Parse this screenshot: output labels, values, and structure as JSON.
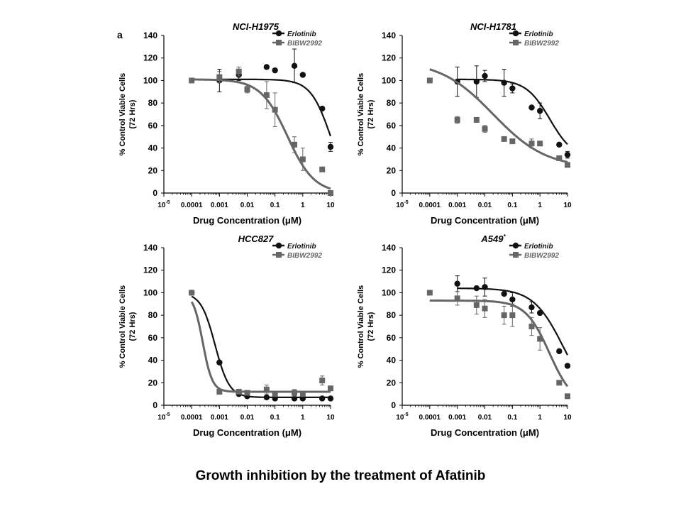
{
  "figure": {
    "panel_letter": "a",
    "caption": "Growth inhibition by the treatment of Afatinib",
    "colors": {
      "erlotinib": "#111111",
      "bibw2992": "#666666",
      "axis": "#000000"
    }
  },
  "chart_data": [
    {
      "type": "scatter",
      "title": "NCI-H1975",
      "xlabel": "Drug Concentration (μM)",
      "ylabel": "% Control Viable Cells",
      "ylabel2": "(72 Hrs)",
      "xscale": "log",
      "xlim": [
        1e-05,
        10
      ],
      "ylim": [
        0,
        140
      ],
      "xticks": [
        "10-5",
        "0.0001",
        "0.001",
        "0.01",
        "0.1",
        "1",
        "10"
      ],
      "yticks": [
        "0",
        "20",
        "40",
        "60",
        "80",
        "100",
        "120",
        "140"
      ],
      "legend": "top-right",
      "series": [
        {
          "name": "Erlotinib",
          "marker": "circle",
          "x": [
            0.001,
            0.005,
            0.05,
            0.1,
            0.5,
            1,
            5,
            10
          ],
          "y": [
            100,
            105,
            112,
            109,
            113,
            105,
            75,
            41
          ],
          "err": [
            10,
            5,
            0,
            0,
            15,
            0,
            0,
            4
          ],
          "fit": {
            "top": 101,
            "bottom": 0,
            "ic50": 10,
            "hill": 1.2
          }
        },
        {
          "name": "BIBW2992",
          "marker": "square",
          "x": [
            0.0001,
            0.001,
            0.005,
            0.01,
            0.05,
            0.1,
            0.5,
            1,
            5,
            10
          ],
          "y": [
            100,
            103,
            108,
            92,
            87,
            74,
            43,
            30,
            21,
            0
          ],
          "err": [
            0,
            5,
            4,
            3,
            12,
            15,
            7,
            10,
            0,
            0
          ],
          "fit": {
            "top": 101,
            "bottom": 0,
            "ic50": 0.28,
            "hill": 0.9
          }
        }
      ]
    },
    {
      "type": "scatter",
      "title": "NCI-H1781",
      "xlabel": "Drug Concentration (μM)",
      "ylabel": "% Control Viable Cells",
      "ylabel2": "(72 Hrs)",
      "xscale": "log",
      "xlim": [
        1e-05,
        10
      ],
      "ylim": [
        0,
        140
      ],
      "xticks": [
        "10-5",
        "0.0001",
        "0.001",
        "0.01",
        "0.1",
        "1",
        "10"
      ],
      "yticks": [
        "0",
        "20",
        "40",
        "60",
        "80",
        "100",
        "120",
        "140"
      ],
      "legend": "top-right",
      "series": [
        {
          "name": "Erlotinib",
          "marker": "circle",
          "x": [
            0.001,
            0.005,
            0.01,
            0.05,
            0.1,
            0.5,
            1,
            5,
            10
          ],
          "y": [
            99,
            99,
            104,
            98,
            93,
            76,
            73,
            43,
            34
          ],
          "err": [
            13,
            14,
            5,
            12,
            4,
            0,
            7,
            0,
            3
          ],
          "fit": {
            "top": 101,
            "bottom": 30,
            "ic50": 2.3,
            "hill": 1.0
          }
        },
        {
          "name": "BIBW2992",
          "marker": "square",
          "x": [
            0.0001,
            0.001,
            0.005,
            0.01,
            0.05,
            0.1,
            0.5,
            1,
            5,
            10
          ],
          "y": [
            100,
            65,
            65,
            57,
            48,
            46,
            44,
            44,
            31,
            25
          ],
          "err": [
            0,
            3,
            0,
            3,
            0,
            0,
            4,
            0,
            0,
            0
          ],
          "fit": {
            "top": 118,
            "bottom": 22,
            "ic50": 0.02,
            "hill": 0.45
          }
        }
      ]
    },
    {
      "type": "scatter",
      "title": "HCC827",
      "xlabel": "Drug Concentration (μM)",
      "ylabel": "% Control Viable Cells",
      "ylabel2": "(72 Hrs)",
      "xscale": "log",
      "xlim": [
        1e-05,
        10
      ],
      "ylim": [
        0,
        140
      ],
      "xticks": [
        "10-5",
        "0.0001",
        "0.001",
        "0.01",
        "0.1",
        "1",
        "10"
      ],
      "yticks": [
        "0",
        "20",
        "40",
        "60",
        "80",
        "100",
        "120",
        "140"
      ],
      "legend": "top-right",
      "series": [
        {
          "name": "Erlotinib",
          "marker": "circle",
          "x": [
            0.0001,
            0.001,
            0.005,
            0.01,
            0.05,
            0.1,
            0.5,
            1,
            5,
            10
          ],
          "y": [
            100,
            38,
            10,
            8,
            7,
            6,
            6,
            6,
            6,
            6
          ],
          "err": [
            0,
            0,
            0,
            0,
            0,
            0,
            0,
            0,
            0,
            0
          ],
          "fit": {
            "top": 100,
            "bottom": 7,
            "ic50": 0.0007,
            "hill": 1.7
          }
        },
        {
          "name": "BIBW2992",
          "marker": "square",
          "x": [
            0.0001,
            0.001,
            0.005,
            0.01,
            0.05,
            0.1,
            0.5,
            1,
            5,
            10
          ],
          "y": [
            100,
            12,
            12,
            11,
            14,
            10,
            11,
            10,
            22,
            15
          ],
          "err": [
            0,
            0,
            0,
            0,
            4,
            0,
            3,
            0,
            4,
            0
          ],
          "fit": {
            "top": 100,
            "bottom": 12,
            "ic50": 0.00025,
            "hill": 2.5
          }
        }
      ]
    },
    {
      "type": "scatter",
      "title": "A549",
      "title_suffix": "*",
      "xlabel": "Drug Concentration (μM)",
      "ylabel": "% Control Viable Cells",
      "ylabel2": "(72 Hrs)",
      "xscale": "log",
      "xlim": [
        1e-05,
        10
      ],
      "ylim": [
        0,
        140
      ],
      "xticks": [
        "10-5",
        "0.0001",
        "0.001",
        "0.01",
        "0.1",
        "1",
        "10"
      ],
      "yticks": [
        "0",
        "20",
        "40",
        "60",
        "80",
        "100",
        "120",
        "140"
      ],
      "legend": "top-right",
      "series": [
        {
          "name": "Erlotinib",
          "marker": "circle",
          "x": [
            0.001,
            0.005,
            0.01,
            0.05,
            0.1,
            0.5,
            1,
            5,
            10
          ],
          "y": [
            108,
            104,
            105,
            99,
            94,
            87,
            82,
            48,
            35
          ],
          "err": [
            7,
            0,
            8,
            0,
            6,
            5,
            0,
            0,
            0
          ],
          "fit": {
            "top": 104,
            "bottom": 0,
            "ic50": 7,
            "hill": 0.8
          }
        },
        {
          "name": "BIBW2992",
          "marker": "square",
          "x": [
            0.0001,
            0.001,
            0.005,
            0.01,
            0.05,
            0.1,
            0.5,
            1,
            5,
            10
          ],
          "y": [
            100,
            95,
            89,
            86,
            80,
            80,
            70,
            59,
            20,
            8
          ],
          "err": [
            0,
            6,
            8,
            8,
            8,
            10,
            8,
            10,
            0,
            0
          ],
          "fit": {
            "top": 93,
            "bottom": 0,
            "ic50": 2.2,
            "hill": 1.0
          }
        }
      ]
    }
  ]
}
